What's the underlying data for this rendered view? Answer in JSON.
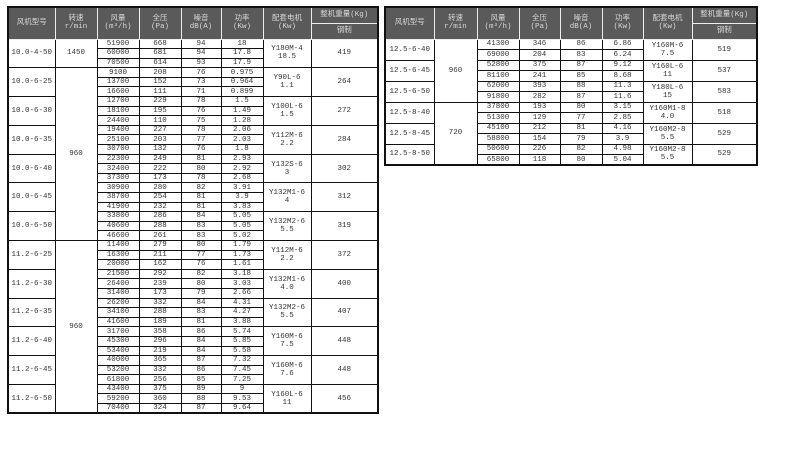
{
  "headers": {
    "model": "风机型号",
    "speed": "转速\nr/min",
    "airflow": "风量\n(m³/h)",
    "pressure": "全压\n(Pa)",
    "noise": "噪音\ndB(A)",
    "power": "功率\n(Kw)",
    "motor": "配套电机\n(Kw)",
    "weight": "整机重量(Kg)",
    "weight_sub": "钢制"
  },
  "colors": {
    "header_bg": "#5a5a5a",
    "header_text": "#d8d8d8",
    "border": "#111111"
  },
  "left_table": {
    "speed_spans": [
      {
        "speed": "1450",
        "groups": 1
      },
      {
        "speed": "960",
        "groups": 6
      },
      {
        "speed": "960",
        "groups": 6
      }
    ],
    "groups": [
      {
        "model": "10.0-4-50",
        "motor": "Y180M-4\n18.5",
        "weight": "419",
        "rows": [
          [
            "51900",
            "668",
            "94",
            "18"
          ],
          [
            "60000",
            "681",
            "94",
            "17.8"
          ],
          [
            "70500",
            "614",
            "93",
            "17.9"
          ]
        ]
      },
      {
        "model": "10.0-6-25",
        "motor": "Y90L-6\n1.1",
        "weight": "264",
        "rows": [
          [
            "9100",
            "208",
            "76",
            "0.975"
          ],
          [
            "13700",
            "152",
            "73",
            "0.964"
          ],
          [
            "16600",
            "111",
            "71",
            "0.899"
          ]
        ]
      },
      {
        "model": "10.0-6-30",
        "motor": "Y100L-6\n1.5",
        "weight": "272",
        "rows": [
          [
            "12700",
            "229",
            "78",
            "1.5"
          ],
          [
            "18100",
            "195",
            "76",
            "1.49"
          ],
          [
            "24400",
            "110",
            "75",
            "1.28"
          ]
        ]
      },
      {
        "model": "10.0-6-35",
        "motor": "Y112M-6\n2.2",
        "weight": "284",
        "rows": [
          [
            "19400",
            "227",
            "78",
            "2.06"
          ],
          [
            "25100",
            "203",
            "77",
            "2.03"
          ],
          [
            "30700",
            "132",
            "76",
            "1.8"
          ]
        ]
      },
      {
        "model": "10.0-6-40",
        "motor": "Y132S-6\n3",
        "weight": "302",
        "rows": [
          [
            "22300",
            "249",
            "81",
            "2.93"
          ],
          [
            "32400",
            "222",
            "80",
            "2.92"
          ],
          [
            "37300",
            "173",
            "78",
            "2.68"
          ]
        ]
      },
      {
        "model": "10.0-6-45",
        "motor": "Y132M1-6\n4",
        "weight": "312",
        "rows": [
          [
            "30900",
            "280",
            "82",
            "3.91"
          ],
          [
            "38700",
            "254",
            "81",
            "3.9"
          ],
          [
            "41900",
            "232",
            "81",
            "3.83"
          ]
        ]
      },
      {
        "model": "10.0-6-50",
        "motor": "Y132M2-6\n5.5",
        "weight": "319",
        "rows": [
          [
            "33800",
            "286",
            "84",
            "5.05"
          ],
          [
            "40600",
            "288",
            "83",
            "5.05"
          ],
          [
            "46600",
            "261",
            "83",
            "5.02"
          ]
        ]
      },
      {
        "model": "11.2-6-25",
        "motor": "Y112M-6\n2.2",
        "weight": "372",
        "rows": [
          [
            "11400",
            "279",
            "80",
            "1.79"
          ],
          [
            "16300",
            "211",
            "77",
            "1.73"
          ],
          [
            "20000",
            "162",
            "76",
            "1.61"
          ]
        ]
      },
      {
        "model": "11.2-6-30",
        "motor": "Y132M1-6\n4.0",
        "weight": "400",
        "rows": [
          [
            "21500",
            "292",
            "82",
            "3.18"
          ],
          [
            "26400",
            "239",
            "80",
            "3.03"
          ],
          [
            "31400",
            "173",
            "79",
            "2.66"
          ]
        ]
      },
      {
        "model": "11.2-6-35",
        "motor": "Y132M2-6\n5.5",
        "weight": "407",
        "rows": [
          [
            "26200",
            "332",
            "84",
            "4.31"
          ],
          [
            "34100",
            "288",
            "83",
            "4.27"
          ],
          [
            "41600",
            "189",
            "81",
            "3.88"
          ]
        ]
      },
      {
        "model": "11.2-6-40",
        "motor": "Y160M-6\n7.5",
        "weight": "448",
        "rows": [
          [
            "31700",
            "358",
            "86",
            "5.74"
          ],
          [
            "45300",
            "296",
            "84",
            "5.85"
          ],
          [
            "53400",
            "219",
            "84",
            "5.58"
          ]
        ]
      },
      {
        "model": "11.2-6-45",
        "motor": "Y160M-6\n7.6",
        "weight": "448",
        "rows": [
          [
            "40000",
            "365",
            "87",
            "7.32"
          ],
          [
            "53200",
            "332",
            "86",
            "7.45"
          ],
          [
            "61800",
            "256",
            "85",
            "7.25"
          ]
        ]
      },
      {
        "model": "11.2-6-50",
        "motor": "Y160L-6\n11",
        "weight": "456",
        "rows": [
          [
            "43400",
            "375",
            "89",
            "9"
          ],
          [
            "59200",
            "360",
            "88",
            "9.53"
          ],
          [
            "70400",
            "324",
            "87",
            "9.64"
          ]
        ]
      }
    ]
  },
  "right_table": {
    "speed_spans": [
      {
        "speed": "960",
        "groups": 3
      },
      {
        "speed": "720",
        "groups": 3
      }
    ],
    "groups": [
      {
        "model": "12.5-6-40",
        "motor": "Y160M-6\n7.5",
        "weight": "519",
        "rows": [
          [
            "41300",
            "346",
            "86",
            "6.86"
          ],
          [
            "69000",
            "204",
            "83",
            "6.24"
          ]
        ]
      },
      {
        "model": "12.5-6-45",
        "motor": "Y160L-6\n11",
        "weight": "537",
        "rows": [
          [
            "52800",
            "375",
            "87",
            "9.12"
          ],
          [
            "81100",
            "241",
            "85",
            "8.68"
          ]
        ]
      },
      {
        "model": "12.5-6-50",
        "motor": "Y180L-6\n15",
        "weight": "583",
        "rows": [
          [
            "62000",
            "393",
            "88",
            "11.3"
          ],
          [
            "91800",
            "282",
            "87",
            "11.6"
          ]
        ]
      },
      {
        "model": "12.5-8-40",
        "motor": "Y160M1-8\n4.0",
        "weight": "518",
        "rows": [
          [
            "37800",
            "193",
            "80",
            "3.15"
          ],
          [
            "51300",
            "129",
            "77",
            "2.85"
          ]
        ]
      },
      {
        "model": "12.5-8-45",
        "motor": "Y160M2-8\n5.5",
        "weight": "529",
        "rows": [
          [
            "45100",
            "212",
            "81",
            "4.16"
          ],
          [
            "58800",
            "154",
            "79",
            "3.9"
          ]
        ]
      },
      {
        "model": "12.5-8-50",
        "motor": "Y160M2-8\n5.5",
        "weight": "529",
        "rows": [
          [
            "50600",
            "226",
            "82",
            "4.98"
          ],
          [
            "65800",
            "118",
            "80",
            "5.04"
          ]
        ]
      }
    ]
  }
}
